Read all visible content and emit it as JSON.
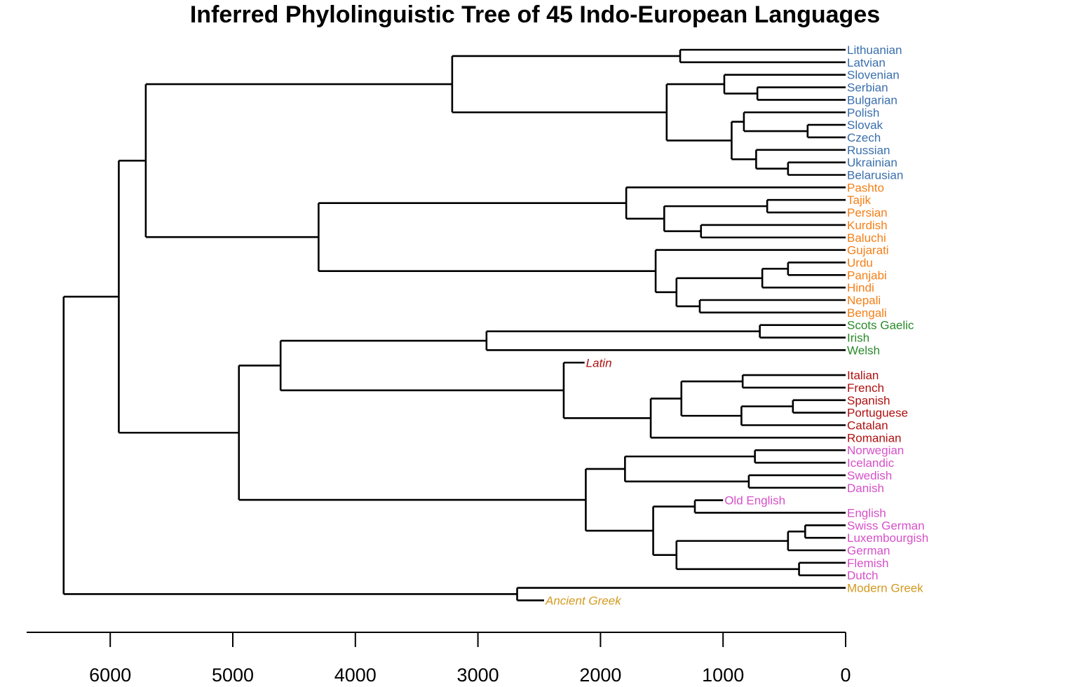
{
  "title": "Inferred Phylolinguistic Tree of 45 Indo-European Languages",
  "colors": {
    "baltoslavic": "#3a6fad",
    "indoiranian": "#f57f17",
    "celtic": "#2a8a2a",
    "romance": "#b01010",
    "germanic": "#d650c8",
    "greek": "#d39a20",
    "branch": "#000000"
  },
  "chart_data": {
    "type": "dendrogram",
    "title": "Inferred Phylolinguistic Tree of 45 Indo-European Languages",
    "axis": {
      "ticks": [
        6000,
        5000,
        4000,
        3000,
        2000,
        1000,
        0
      ],
      "reversed": true,
      "range": [
        6700,
        0
      ]
    },
    "tree": {
      "age": 6380,
      "children": [
        {
          "age": 5930,
          "children": [
            {
              "age": 5710,
              "children": [
                {
                  "age": 3210,
                  "children": [
                    {
                      "age": 1350,
                      "children": [
                        {
                          "name": "Lithuanian",
                          "group": "baltoslavic"
                        },
                        {
                          "name": "Latvian",
                          "group": "baltoslavic"
                        }
                      ]
                    },
                    {
                      "age": 1460,
                      "children": [
                        {
                          "age": 990,
                          "children": [
                            {
                              "name": "Slovenian",
                              "group": "baltoslavic"
                            },
                            {
                              "age": 720,
                              "children": [
                                {
                                  "name": "Serbian",
                                  "group": "baltoslavic"
                                },
                                {
                                  "name": "Bulgarian",
                                  "group": "baltoslavic"
                                }
                              ]
                            }
                          ]
                        },
                        {
                          "age": 930,
                          "children": [
                            {
                              "age": 830,
                              "children": [
                                {
                                  "name": "Polish",
                                  "group": "baltoslavic"
                                },
                                {
                                  "age": 310,
                                  "children": [
                                    {
                                      "name": "Slovak",
                                      "group": "baltoslavic"
                                    },
                                    {
                                      "name": "Czech",
                                      "group": "baltoslavic"
                                    }
                                  ]
                                }
                              ]
                            },
                            {
                              "age": 730,
                              "children": [
                                {
                                  "name": "Russian",
                                  "group": "baltoslavic"
                                },
                                {
                                  "age": 470,
                                  "children": [
                                    {
                                      "name": "Ukrainian",
                                      "group": "baltoslavic"
                                    },
                                    {
                                      "name": "Belarusian",
                                      "group": "baltoslavic"
                                    }
                                  ]
                                }
                              ]
                            }
                          ]
                        }
                      ]
                    }
                  ]
                },
                {
                  "age": 4300,
                  "children": [
                    {
                      "age": 1790,
                      "children": [
                        {
                          "name": "Pashto",
                          "group": "indoiranian"
                        },
                        {
                          "age": 1480,
                          "children": [
                            {
                              "age": 640,
                              "children": [
                                {
                                  "name": "Tajik",
                                  "group": "indoiranian"
                                },
                                {
                                  "name": "Persian",
                                  "group": "indoiranian"
                                }
                              ]
                            },
                            {
                              "age": 1180,
                              "children": [
                                {
                                  "name": "Kurdish",
                                  "group": "indoiranian"
                                },
                                {
                                  "name": "Baluchi",
                                  "group": "indoiranian"
                                }
                              ]
                            }
                          ]
                        }
                      ]
                    },
                    {
                      "age": 1550,
                      "children": [
                        {
                          "name": "Gujarati",
                          "group": "indoiranian"
                        },
                        {
                          "age": 1380,
                          "children": [
                            {
                              "age": 680,
                              "children": [
                                {
                                  "age": 470,
                                  "children": [
                                    {
                                      "name": "Urdu",
                                      "group": "indoiranian"
                                    },
                                    {
                                      "name": "Panjabi",
                                      "group": "indoiranian"
                                    }
                                  ]
                                },
                                {
                                  "name": "Hindi",
                                  "group": "indoiranian"
                                }
                              ]
                            },
                            {
                              "age": 1190,
                              "children": [
                                {
                                  "name": "Nepali",
                                  "group": "indoiranian"
                                },
                                {
                                  "name": "Bengali",
                                  "group": "indoiranian"
                                }
                              ]
                            }
                          ]
                        }
                      ]
                    }
                  ]
                }
              ]
            },
            {
              "age": 4950,
              "children": [
                {
                  "age": 4610,
                  "children": [
                    {
                      "age": 2930,
                      "children": [
                        {
                          "age": 700,
                          "children": [
                            {
                              "name": "Scots Gaelic",
                              "group": "celtic"
                            },
                            {
                              "name": "Irish",
                              "group": "celtic"
                            }
                          ]
                        },
                        {
                          "name": "Welsh",
                          "group": "celtic"
                        }
                      ]
                    },
                    {
                      "age": 2300,
                      "children": [
                        {
                          "name": "Latin",
                          "group": "romance",
                          "ancient": true,
                          "leaf_age": 2130
                        },
                        {
                          "age": 1590,
                          "children": [
                            {
                              "age": 1340,
                              "children": [
                                {
                                  "age": 840,
                                  "children": [
                                    {
                                      "name": "Italian",
                                      "group": "romance"
                                    },
                                    {
                                      "name": "French",
                                      "group": "romance"
                                    }
                                  ]
                                },
                                {
                                  "age": 850,
                                  "children": [
                                    {
                                      "age": 430,
                                      "children": [
                                        {
                                          "name": "Spanish",
                                          "group": "romance"
                                        },
                                        {
                                          "name": "Portuguese",
                                          "group": "romance"
                                        }
                                      ]
                                    },
                                    {
                                      "name": "Catalan",
                                      "group": "romance"
                                    }
                                  ]
                                }
                              ]
                            },
                            {
                              "name": "Romanian",
                              "group": "romance"
                            }
                          ]
                        }
                      ]
                    }
                  ]
                },
                {
                  "age": 2120,
                  "children": [
                    {
                      "age": 1800,
                      "children": [
                        {
                          "age": 740,
                          "children": [
                            {
                              "name": "Norwegian",
                              "group": "germanic"
                            },
                            {
                              "name": "Icelandic",
                              "group": "germanic"
                            }
                          ]
                        },
                        {
                          "age": 790,
                          "children": [
                            {
                              "name": "Swedish",
                              "group": "germanic"
                            },
                            {
                              "name": "Danish",
                              "group": "germanic"
                            }
                          ]
                        }
                      ]
                    },
                    {
                      "age": 1570,
                      "children": [
                        {
                          "age": 1230,
                          "children": [
                            {
                              "name": "Old English",
                              "group": "germanic",
                              "leaf_age": 1000
                            },
                            {
                              "name": "English",
                              "group": "germanic"
                            }
                          ]
                        },
                        {
                          "age": 1380,
                          "children": [
                            {
                              "age": 470,
                              "children": [
                                {
                                  "age": 330,
                                  "children": [
                                    {
                                      "name": "Swiss German",
                                      "group": "germanic"
                                    },
                                    {
                                      "name": "Luxembourgish",
                                      "group": "germanic"
                                    }
                                  ]
                                },
                                {
                                  "name": "German",
                                  "group": "germanic"
                                }
                              ]
                            },
                            {
                              "age": 380,
                              "children": [
                                {
                                  "name": "Flemish",
                                  "group": "germanic"
                                },
                                {
                                  "name": "Dutch",
                                  "group": "germanic"
                                }
                              ]
                            }
                          ]
                        }
                      ]
                    }
                  ]
                }
              ]
            }
          ]
        },
        {
          "age": 2680,
          "children": [
            {
              "name": "Modern Greek",
              "group": "greek"
            },
            {
              "name": "Ancient Greek",
              "group": "greek",
              "ancient": true,
              "leaf_age": 2460
            }
          ]
        }
      ]
    }
  }
}
